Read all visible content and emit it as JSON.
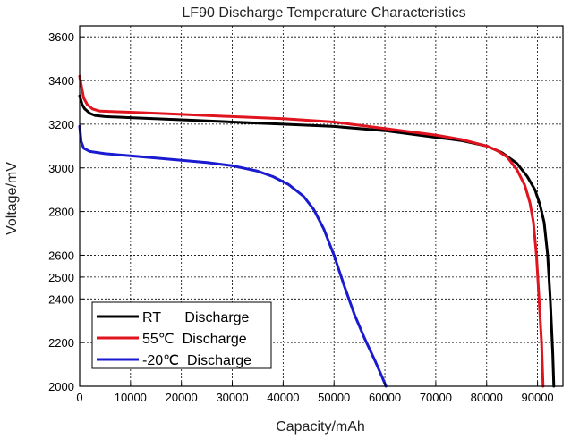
{
  "chart_data": {
    "type": "line",
    "title": "LF90 Discharge Temperature Characteristics",
    "xlabel": "Capacity/mAh",
    "ylabel": "Voltage/mV",
    "xlim": [
      0,
      95000
    ],
    "ylim": [
      2000,
      3650
    ],
    "x_ticks": [
      0,
      10000,
      20000,
      30000,
      40000,
      50000,
      60000,
      70000,
      80000,
      90000
    ],
    "y_ticks": [
      2000,
      2200,
      2400,
      2500,
      2600,
      2800,
      3000,
      3200,
      3400,
      3600
    ],
    "x_tick_labels": [
      "0",
      "10000",
      "20000",
      "30000",
      "40000",
      "50000",
      "60000",
      "70000",
      "80000",
      "90000"
    ],
    "y_tick_labels": [
      "2000",
      "2200",
      "2400",
      "2500",
      "2600",
      "2800",
      "3000",
      "3200",
      "3400",
      "3600"
    ],
    "grid": true,
    "legend_position": "bottom-left",
    "series": [
      {
        "name": "RT      Discharge",
        "color": "#000000",
        "points": [
          [
            0,
            3330
          ],
          [
            500,
            3290
          ],
          [
            1000,
            3270
          ],
          [
            2000,
            3250
          ],
          [
            3000,
            3240
          ],
          [
            5000,
            3235
          ],
          [
            10000,
            3230
          ],
          [
            20000,
            3220
          ],
          [
            30000,
            3210
          ],
          [
            40000,
            3200
          ],
          [
            50000,
            3190
          ],
          [
            60000,
            3170
          ],
          [
            70000,
            3140
          ],
          [
            75000,
            3125
          ],
          [
            80000,
            3100
          ],
          [
            83000,
            3070
          ],
          [
            86000,
            3020
          ],
          [
            88000,
            2960
          ],
          [
            89500,
            2900
          ],
          [
            90500,
            2830
          ],
          [
            91300,
            2750
          ],
          [
            92000,
            2600
          ],
          [
            92500,
            2400
          ],
          [
            92800,
            2250
          ],
          [
            93000,
            2150
          ],
          [
            93200,
            2000
          ]
        ]
      },
      {
        "name": "55℃  Discharge",
        "color": "#e0141e",
        "points": [
          [
            0,
            3420
          ],
          [
            300,
            3380
          ],
          [
            800,
            3320
          ],
          [
            1500,
            3290
          ],
          [
            2500,
            3270
          ],
          [
            4000,
            3260
          ],
          [
            10000,
            3255
          ],
          [
            20000,
            3245
          ],
          [
            30000,
            3235
          ],
          [
            40000,
            3225
          ],
          [
            50000,
            3210
          ],
          [
            60000,
            3180
          ],
          [
            70000,
            3150
          ],
          [
            75000,
            3130
          ],
          [
            80000,
            3100
          ],
          [
            82000,
            3080
          ],
          [
            84000,
            3050
          ],
          [
            86000,
            2990
          ],
          [
            87500,
            2920
          ],
          [
            88500,
            2840
          ],
          [
            89200,
            2750
          ],
          [
            89800,
            2600
          ],
          [
            90300,
            2400
          ],
          [
            90800,
            2200
          ],
          [
            91100,
            2000
          ]
        ]
      },
      {
        "name": "-20℃  Discharge",
        "color": "#1a1ad0",
        "points": [
          [
            0,
            3190
          ],
          [
            300,
            3120
          ],
          [
            800,
            3090
          ],
          [
            2000,
            3075
          ],
          [
            5000,
            3065
          ],
          [
            10000,
            3055
          ],
          [
            15000,
            3045
          ],
          [
            20000,
            3035
          ],
          [
            25000,
            3025
          ],
          [
            30000,
            3010
          ],
          [
            35000,
            2985
          ],
          [
            38000,
            2960
          ],
          [
            41000,
            2925
          ],
          [
            44000,
            2870
          ],
          [
            46000,
            2810
          ],
          [
            48000,
            2720
          ],
          [
            50000,
            2600
          ],
          [
            52000,
            2460
          ],
          [
            54000,
            2330
          ],
          [
            56000,
            2220
          ],
          [
            58000,
            2120
          ],
          [
            59500,
            2040
          ],
          [
            60200,
            2000
          ]
        ]
      }
    ]
  }
}
